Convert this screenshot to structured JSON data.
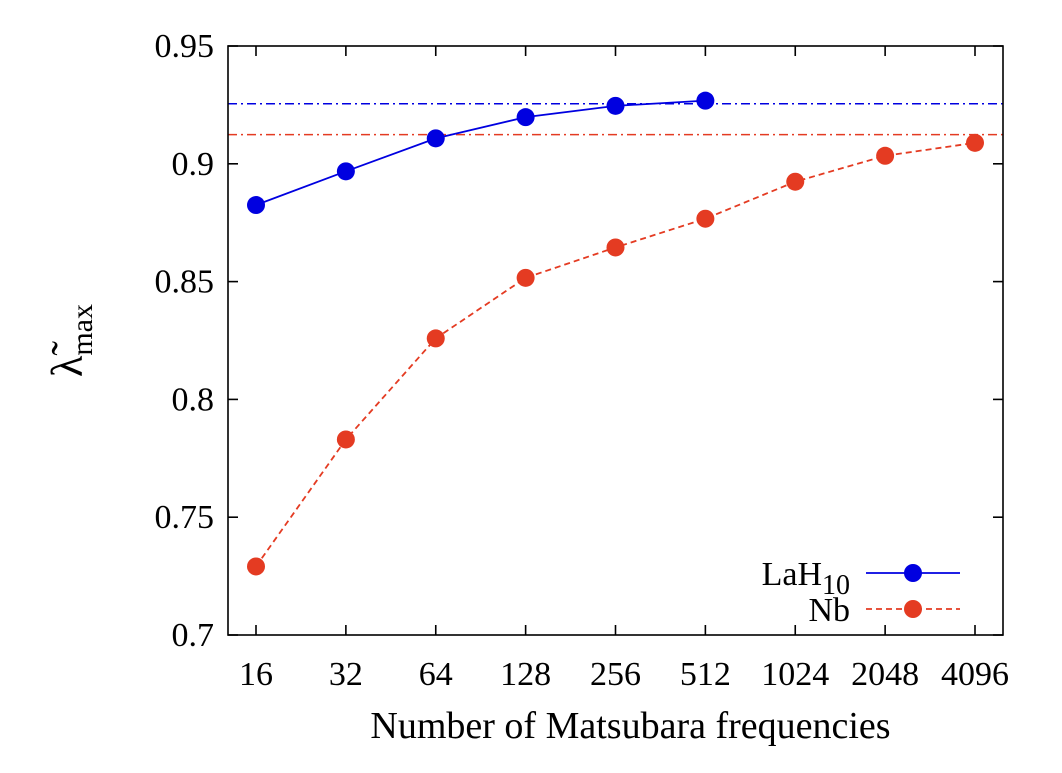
{
  "chart_data": {
    "type": "line",
    "x_scale": "log2",
    "x": [
      16,
      32,
      64,
      128,
      256,
      512,
      1024,
      2048,
      4096
    ],
    "x_tick_labels": [
      "16",
      "32",
      "64",
      "128",
      "256",
      "512",
      "1024",
      "2048",
      "4096"
    ],
    "xlabel": "Number of Matsubara frequencies",
    "ylabel": {
      "symbol": "λ̃",
      "subscript": "max"
    },
    "ylim": [
      0.7,
      0.95
    ],
    "y_ticks": [
      0.7,
      0.75,
      0.8,
      0.85,
      0.9,
      0.95
    ],
    "y_tick_labels": [
      "0.7",
      "0.75",
      "0.8",
      "0.85",
      "0.9",
      "0.95"
    ],
    "grid": false,
    "legend_position": "bottom-right",
    "series": [
      {
        "name": "LaH",
        "name_subscript": "10",
        "color": "#0000e0",
        "line_style": "solid",
        "marker": "filled-circle",
        "x": [
          16,
          32,
          64,
          128,
          256,
          512
        ],
        "values": [
          0.8825,
          0.8968,
          0.9108,
          0.9198,
          0.9246,
          0.9268
        ]
      },
      {
        "name": "Nb",
        "color": "#e43b22",
        "line_style": "dashed",
        "marker": "filled-circle",
        "x": [
          16,
          32,
          64,
          128,
          256,
          512,
          1024,
          2048,
          4096
        ],
        "values": [
          0.7291,
          0.783,
          0.8259,
          0.8516,
          0.8645,
          0.8767,
          0.8924,
          0.9034,
          0.9089
        ]
      }
    ],
    "reference_lines": [
      {
        "y": 0.9255,
        "color": "#0000e0",
        "style": "dash-dot"
      },
      {
        "y": 0.9124,
        "color": "#e43b22",
        "style": "dash-dot"
      }
    ]
  }
}
